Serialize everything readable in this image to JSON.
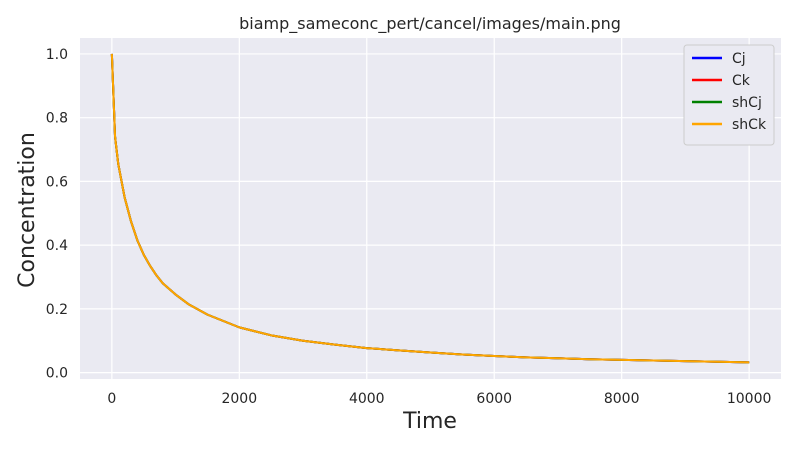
{
  "chart_data": {
    "type": "line",
    "title": "biamp_sameconc_pert/cancel/images/main.png",
    "xlabel": "Time",
    "ylabel": "Concentration",
    "xlim": [
      -500,
      10500
    ],
    "ylim": [
      -0.02,
      1.05
    ],
    "xticks": [
      0,
      2000,
      4000,
      6000,
      8000,
      10000
    ],
    "xtick_labels": [
      "0",
      "2000",
      "4000",
      "6000",
      "8000",
      "10000"
    ],
    "yticks": [
      0.0,
      0.2,
      0.4,
      0.6,
      0.8,
      1.0
    ],
    "ytick_labels": [
      "0.0",
      "0.2",
      "0.4",
      "0.6",
      "0.8",
      "1.0"
    ],
    "grid": true,
    "legend_position": "top-right",
    "series": [
      {
        "name": "Cj",
        "color": "#0000ff",
        "x": [
          0,
          50,
          100,
          200,
          300,
          400,
          500,
          600,
          700,
          800,
          1000,
          1200,
          1500,
          2000,
          2500,
          3000,
          3500,
          4000,
          4500,
          5000,
          5500,
          6000,
          6500,
          7000,
          7500,
          8000,
          8500,
          9000,
          9500,
          10000
        ],
        "y": [
          1.0,
          0.74,
          0.655,
          0.55,
          0.475,
          0.415,
          0.37,
          0.335,
          0.305,
          0.28,
          0.245,
          0.215,
          0.182,
          0.142,
          0.117,
          0.1,
          0.088,
          0.077,
          0.07,
          0.063,
          0.057,
          0.052,
          0.048,
          0.045,
          0.042,
          0.04,
          0.038,
          0.036,
          0.034,
          0.032
        ]
      },
      {
        "name": "Ck",
        "color": "#ff0000",
        "x": [
          0,
          50,
          100,
          200,
          300,
          400,
          500,
          600,
          700,
          800,
          1000,
          1200,
          1500,
          2000,
          2500,
          3000,
          3500,
          4000,
          4500,
          5000,
          5500,
          6000,
          6500,
          7000,
          7500,
          8000,
          8500,
          9000,
          9500,
          10000
        ],
        "y": [
          1.0,
          0.74,
          0.655,
          0.55,
          0.475,
          0.415,
          0.37,
          0.335,
          0.305,
          0.28,
          0.245,
          0.215,
          0.182,
          0.142,
          0.117,
          0.1,
          0.088,
          0.077,
          0.07,
          0.063,
          0.057,
          0.052,
          0.048,
          0.045,
          0.042,
          0.04,
          0.038,
          0.036,
          0.034,
          0.032
        ]
      },
      {
        "name": "shCj",
        "color": "#008000",
        "x": [
          0,
          50,
          100,
          200,
          300,
          400,
          500,
          600,
          700,
          800,
          1000,
          1200,
          1500,
          2000,
          2500,
          3000,
          3500,
          4000,
          4500,
          5000,
          5500,
          6000,
          6500,
          7000,
          7500,
          8000,
          8500,
          9000,
          9500,
          10000
        ],
        "y": [
          1.0,
          0.74,
          0.655,
          0.55,
          0.475,
          0.415,
          0.37,
          0.335,
          0.305,
          0.28,
          0.245,
          0.215,
          0.182,
          0.142,
          0.117,
          0.1,
          0.088,
          0.077,
          0.07,
          0.063,
          0.057,
          0.052,
          0.048,
          0.045,
          0.042,
          0.04,
          0.038,
          0.036,
          0.034,
          0.032
        ]
      },
      {
        "name": "shCk",
        "color": "#ffa500",
        "x": [
          0,
          50,
          100,
          200,
          300,
          400,
          500,
          600,
          700,
          800,
          1000,
          1200,
          1500,
          2000,
          2500,
          3000,
          3500,
          4000,
          4500,
          5000,
          5500,
          6000,
          6500,
          7000,
          7500,
          8000,
          8500,
          9000,
          9500,
          10000
        ],
        "y": [
          1.0,
          0.74,
          0.655,
          0.55,
          0.475,
          0.415,
          0.37,
          0.335,
          0.305,
          0.28,
          0.245,
          0.215,
          0.182,
          0.142,
          0.117,
          0.1,
          0.088,
          0.077,
          0.07,
          0.063,
          0.057,
          0.052,
          0.048,
          0.045,
          0.042,
          0.04,
          0.038,
          0.036,
          0.034,
          0.032
        ]
      }
    ]
  },
  "style": {
    "plot_background": "#eaeaf2",
    "grid_color": "#ffffff",
    "text_color": "#262626",
    "legend_background": "#eaeaf2",
    "legend_border": "#cccccc"
  }
}
